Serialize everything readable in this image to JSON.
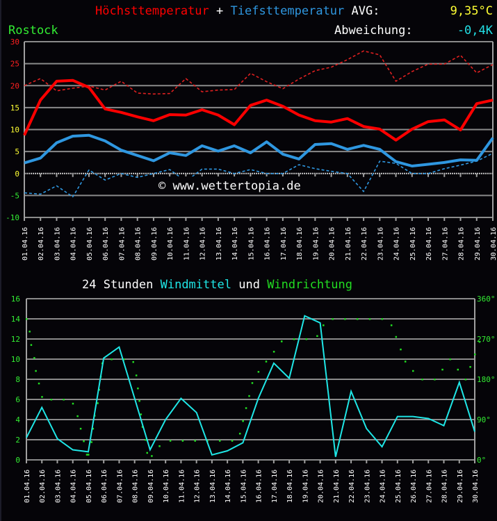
{
  "header": {
    "title_high": "Höchsttemperatur",
    "title_plus": "+",
    "title_low": "Tiefsttemperatur",
    "avg_label": "AVG:",
    "avg_value": "9,35°C",
    "location": "Rostock",
    "deviation_label": "Abweichung:",
    "deviation_value": "-0,4K"
  },
  "colors": {
    "high": "#ff0000",
    "high_normal": "#e02020",
    "low": "#2f97e0",
    "low_normal": "#2f97e0",
    "wind": "#1fe6e6",
    "direction": "#22dd22",
    "text": "#ffffff",
    "avg": "#ffff33",
    "deviation": "#22e0e6",
    "location": "#33ee33",
    "grid": "#8a8a8a",
    "axis": "#a0a0a0"
  },
  "watermark": "© www.wettertopia.de",
  "wind_title": {
    "prefix": "24 Stunden",
    "windmittel": "Windmittel",
    "und": "und",
    "windrichtung": "Windrichtung"
  },
  "chart_data": [
    {
      "type": "line",
      "title": "Höchsttemperatur + Tiefsttemperatur",
      "xlabel": "",
      "ylabel": "°C",
      "ylim": [
        -10,
        30
      ],
      "yticks": [
        30,
        25,
        20,
        15,
        10,
        5,
        0,
        -5,
        -10
      ],
      "ytick_colors": [
        "#ff2020",
        "#ff2020",
        "#ff2020",
        "#ffff33",
        "#ffff33",
        "#ffff33",
        "#ffff33",
        "#33ee33",
        "#33ee33"
      ],
      "grid": true,
      "categories": [
        "01.04.16",
        "02.04.16",
        "03.04.16",
        "04.04.16",
        "05.04.16",
        "06.04.16",
        "07.04.16",
        "08.04.16",
        "09.04.16",
        "10.04.16",
        "11.04.16",
        "12.04.16",
        "13.04.16",
        "14.04.16",
        "15.04.16",
        "16.04.16",
        "17.04.16",
        "18.04.16",
        "19.04.16",
        "20.04.16",
        "21.04.16",
        "22.04.16",
        "23.04.16",
        "24.04.16",
        "25.04.16",
        "26.04.16",
        "27.04.16",
        "28.04.16",
        "29.04.16",
        "30.04.16"
      ],
      "series": [
        {
          "name": "Höchsttemperatur",
          "style": "solid",
          "color": "#ff0000",
          "values": [
            8.7,
            16.7,
            21.0,
            21.2,
            19.6,
            14.7,
            13.9,
            12.9,
            12.0,
            13.4,
            13.3,
            14.5,
            13.3,
            11.1,
            15.5,
            16.7,
            15.3,
            13.3,
            12.0,
            11.7,
            12.5,
            10.7,
            10.1,
            7.6,
            10.1,
            11.8,
            12.2,
            9.9,
            15.9,
            16.7
          ]
        },
        {
          "name": "Höchsttemperatur (Vergleich)",
          "style": "dashed",
          "color": "#e02020",
          "values": [
            20.0,
            21.6,
            18.8,
            19.4,
            19.9,
            19.0,
            21.0,
            18.3,
            18.1,
            18.2,
            21.6,
            18.6,
            19.0,
            19.1,
            22.8,
            20.9,
            19.3,
            21.5,
            23.4,
            24.2,
            25.9,
            27.9,
            27.0,
            21.0,
            23.2,
            24.9,
            24.9,
            26.9,
            22.9,
            24.8
          ]
        },
        {
          "name": "Tiefsttemperatur",
          "style": "solid",
          "color": "#2f97e0",
          "values": [
            2.4,
            3.5,
            7.0,
            8.5,
            8.7,
            7.4,
            5.3,
            4.1,
            2.9,
            4.7,
            4.1,
            6.3,
            5.1,
            6.3,
            4.7,
            7.2,
            4.4,
            3.3,
            6.6,
            6.8,
            5.5,
            6.4,
            5.5,
            2.7,
            1.7,
            2.1,
            2.5,
            3.1,
            3.0,
            8.1
          ]
        },
        {
          "name": "Tiefsttemperatur (Vergleich)",
          "style": "dashed",
          "color": "#2f97e0",
          "values": [
            -4.4,
            -4.7,
            -2.8,
            -5.3,
            0.8,
            -1.5,
            0.0,
            -0.9,
            0.0,
            0.9,
            -1.8,
            1.0,
            1.0,
            0.0,
            0.9,
            0.0,
            0.0,
            2.0,
            1.1,
            0.5,
            0.0,
            -4.1,
            2.8,
            2.3,
            0.0,
            0.0,
            1.1,
            1.9,
            2.8,
            4.6
          ]
        }
      ]
    },
    {
      "type": "line",
      "title": "24 Stunden Windmittel und Windrichtung",
      "xlabel": "",
      "ylabel": "Windmittel",
      "ylim": [
        0,
        16
      ],
      "yticks": [
        16,
        14,
        12,
        10,
        8,
        6,
        4,
        2,
        0
      ],
      "y2label": "Windrichtung",
      "y2lim": [
        0,
        360
      ],
      "y2ticks": [
        "360°",
        "270°",
        "180°",
        "90°",
        "0°"
      ],
      "grid": true,
      "categories": [
        "01.04.16",
        "02.04.16",
        "03.04.16",
        "04.04.16",
        "05.04.16",
        "06.04.16",
        "07.04.16",
        "08.04.16",
        "09.04.16",
        "10.04.16",
        "11.04.16",
        "12.04.16",
        "13.04.16",
        "14.04.16",
        "15.04.16",
        "16.04.16",
        "17.04.16",
        "18.04.16",
        "19.04.16",
        "20.04.16",
        "21.04.16",
        "22.04.16",
        "23.04.16",
        "24.04.16",
        "25.04.16",
        "26.04.16",
        "27.04.16",
        "28.04.16",
        "29.04.16",
        "30.04.16"
      ],
      "series": [
        {
          "name": "Windmittel",
          "style": "line",
          "color": "#1fe6e6",
          "values": [
            2.2,
            5.2,
            2.1,
            1.0,
            0.8,
            10.1,
            11.2,
            6.1,
            1.0,
            4.0,
            6.1,
            4.7,
            0.5,
            0.9,
            1.7,
            6.1,
            9.6,
            8.1,
            14.3,
            13.6,
            0.3,
            6.8,
            3.1,
            1.3,
            4.3,
            4.3,
            4.1,
            3.4,
            7.7,
            2.8
          ]
        },
        {
          "name": "Windrichtung",
          "style": "scatter",
          "color": "#22dd22",
          "points": [
            [
              1.0,
              315
            ],
            [
              1.2,
              287
            ],
            [
              1.3,
              257
            ],
            [
              1.5,
              228
            ],
            [
              1.6,
              199
            ],
            [
              1.8,
              171
            ],
            [
              2.0,
              141
            ],
            [
              2.6,
              135
            ],
            [
              3.4,
              135
            ],
            [
              4.0,
              126
            ],
            [
              4.3,
              98
            ],
            [
              4.5,
              70
            ],
            [
              4.7,
              42
            ],
            [
              4.9,
              12
            ],
            [
              5.0,
              12
            ],
            [
              5.2,
              40
            ],
            [
              5.3,
              70
            ],
            [
              5.4,
              99
            ],
            [
              5.6,
              127
            ],
            [
              5.7,
              157
            ],
            [
              5.8,
              186
            ],
            [
              5.9,
              216
            ],
            [
              6.5,
              225
            ],
            [
              7.3,
              225
            ],
            [
              7.9,
              219
            ],
            [
              8.1,
              189
            ],
            [
              8.2,
              160
            ],
            [
              8.3,
              132
            ],
            [
              8.4,
              102
            ],
            [
              8.5,
              74
            ],
            [
              8.7,
              45
            ],
            [
              8.8,
              16
            ],
            [
              9.1,
              9
            ],
            [
              9.6,
              31
            ],
            [
              10.3,
              43
            ],
            [
              11.1,
              43
            ],
            [
              11.9,
              43
            ],
            [
              12.7,
              43
            ],
            [
              13.5,
              43
            ],
            [
              14.3,
              43
            ],
            [
              14.8,
              59
            ],
            [
              15.0,
              87
            ],
            [
              15.2,
              116
            ],
            [
              15.4,
              143
            ],
            [
              15.6,
              172
            ],
            [
              16.0,
              197
            ],
            [
              16.5,
              220
            ],
            [
              17.0,
              242
            ],
            [
              17.5,
              265
            ],
            [
              18.3,
              270
            ],
            [
              19.1,
              270
            ],
            [
              19.8,
              277
            ],
            [
              20.2,
              301
            ],
            [
              20.8,
              315
            ],
            [
              21.6,
              315
            ],
            [
              22.4,
              315
            ],
            [
              23.2,
              315
            ],
            [
              24.0,
              315
            ],
            [
              24.6,
              301
            ],
            [
              24.9,
              275
            ],
            [
              25.2,
              247
            ],
            [
              25.5,
              220
            ],
            [
              26.0,
              199
            ],
            [
              26.6,
              180
            ],
            [
              27.4,
              180
            ],
            [
              27.9,
              202
            ],
            [
              28.4,
              225
            ],
            [
              28.9,
              202
            ],
            [
              29.4,
              180
            ],
            [
              29.7,
              208
            ],
            [
              30.0,
              236
            ],
            [
              30.3,
              264
            ]
          ]
        }
      ]
    }
  ]
}
